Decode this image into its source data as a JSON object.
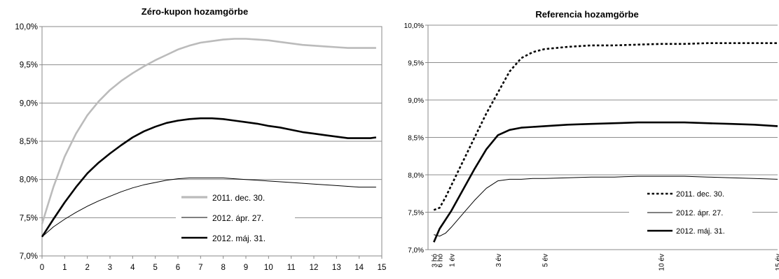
{
  "chart_data": [
    {
      "type": "line",
      "title": "Zéro-kupon hozamgörbe",
      "xlabel": "",
      "ylabel": "",
      "xlim": [
        0,
        15
      ],
      "ylim": [
        7.0,
        10.0
      ],
      "y_ticks": [
        "7,0%",
        "7,5%",
        "8,0%",
        "8,5%",
        "9,0%",
        "9,5%",
        "10,0%"
      ],
      "x_ticks": [
        "0",
        "1",
        "2",
        "3",
        "4",
        "5",
        "6",
        "7",
        "8",
        "9",
        "10",
        "11",
        "12",
        "13",
        "14",
        "15"
      ],
      "grid": "horizontal",
      "legend_position": "bottom-right",
      "series": [
        {
          "name": "2011. dec. 30.",
          "color": "#bbbbbb",
          "style": "solid-thick",
          "x": [
            0,
            0.25,
            0.5,
            1,
            1.5,
            2,
            2.5,
            3,
            3.5,
            4,
            4.5,
            5,
            5.5,
            6,
            6.5,
            7,
            7.5,
            8,
            8.5,
            9,
            9.5,
            10,
            10.5,
            11,
            11.5,
            12,
            12.5,
            13,
            13.5,
            14,
            14.5,
            14.75
          ],
          "y": [
            7.42,
            7.66,
            7.9,
            8.3,
            8.6,
            8.84,
            9.02,
            9.17,
            9.29,
            9.39,
            9.48,
            9.56,
            9.63,
            9.7,
            9.75,
            9.79,
            9.81,
            9.83,
            9.84,
            9.84,
            9.83,
            9.82,
            9.8,
            9.78,
            9.76,
            9.75,
            9.74,
            9.73,
            9.72,
            9.72,
            9.72,
            9.72
          ]
        },
        {
          "name": "2012. ápr. 27.",
          "color": "#000000",
          "style": "solid-thin",
          "x": [
            0,
            0.5,
            1,
            1.5,
            2,
            2.5,
            3,
            3.5,
            4,
            4.5,
            5,
            5.5,
            6,
            6.5,
            7,
            7.5,
            8,
            8.5,
            9,
            9.5,
            10,
            11,
            12,
            13,
            14,
            14.75
          ],
          "y": [
            7.25,
            7.38,
            7.48,
            7.57,
            7.65,
            7.72,
            7.78,
            7.84,
            7.89,
            7.93,
            7.96,
            7.99,
            8.01,
            8.02,
            8.02,
            8.02,
            8.02,
            8.01,
            8.0,
            7.99,
            7.98,
            7.96,
            7.94,
            7.92,
            7.9,
            7.9
          ]
        },
        {
          "name": "2012. máj. 31.",
          "color": "#000000",
          "style": "solid-thick",
          "x": [
            0,
            0.5,
            1,
            1.5,
            2,
            2.5,
            3,
            3.5,
            4,
            4.5,
            5,
            5.5,
            6,
            6.5,
            7,
            7.5,
            8,
            8.5,
            9,
            9.5,
            10,
            10.5,
            11,
            11.5,
            12,
            12.5,
            13,
            13.5,
            14,
            14.5,
            14.75
          ],
          "y": [
            7.25,
            7.48,
            7.7,
            7.9,
            8.08,
            8.22,
            8.34,
            8.45,
            8.55,
            8.63,
            8.69,
            8.74,
            8.77,
            8.79,
            8.8,
            8.8,
            8.79,
            8.77,
            8.75,
            8.73,
            8.7,
            8.68,
            8.65,
            8.62,
            8.6,
            8.58,
            8.56,
            8.54,
            8.54,
            8.54,
            8.55
          ]
        }
      ]
    },
    {
      "type": "line",
      "title": "Referencia hozamgörbe",
      "xlabel": "",
      "ylabel": "",
      "xlim": [
        0,
        15
      ],
      "ylim": [
        7.0,
        10.0
      ],
      "y_ticks": [
        "7,0%",
        "7,5%",
        "8,0%",
        "8,5%",
        "9,0%",
        "9,5%",
        "10,0%"
      ],
      "x_tick_labels": [
        {
          "x": 0.25,
          "label": "3 hó"
        },
        {
          "x": 0.5,
          "label": "6 hó"
        },
        {
          "x": 1,
          "label": "1 év"
        },
        {
          "x": 3,
          "label": "3 év"
        },
        {
          "x": 5,
          "label": "5 év"
        },
        {
          "x": 10,
          "label": "10 év"
        },
        {
          "x": 15,
          "label": "15 év"
        }
      ],
      "grid": "horizontal",
      "legend_position": "bottom-right",
      "series": [
        {
          "name": "2011. dec. 30.",
          "color": "#000000",
          "style": "dotted",
          "x": [
            0.25,
            0.5,
            0.75,
            1,
            1.5,
            2,
            2.5,
            3,
            3.5,
            4,
            4.5,
            5,
            6,
            7,
            8,
            9,
            10,
            11,
            12,
            13,
            14,
            15
          ],
          "y": [
            7.53,
            7.56,
            7.7,
            7.86,
            8.18,
            8.5,
            8.82,
            9.1,
            9.38,
            9.56,
            9.64,
            9.68,
            9.71,
            9.73,
            9.73,
            9.74,
            9.75,
            9.75,
            9.76,
            9.76,
            9.76,
            9.76
          ]
        },
        {
          "name": "2012. ápr. 27.",
          "color": "#000000",
          "style": "solid-thin",
          "x": [
            0.25,
            0.5,
            0.75,
            1,
            1.5,
            2,
            2.5,
            3,
            3.5,
            4,
            4.5,
            5,
            6,
            7,
            8,
            9,
            10,
            11,
            12,
            13,
            14,
            15
          ],
          "y": [
            7.2,
            7.18,
            7.22,
            7.3,
            7.48,
            7.66,
            7.82,
            7.92,
            7.94,
            7.94,
            7.95,
            7.95,
            7.96,
            7.97,
            7.97,
            7.98,
            7.98,
            7.98,
            7.97,
            7.96,
            7.95,
            7.94
          ]
        },
        {
          "name": "2012. máj. 31.",
          "color": "#000000",
          "style": "solid-thick",
          "x": [
            0.25,
            0.5,
            0.75,
            1,
            1.5,
            2,
            2.5,
            3,
            3.5,
            4,
            4.5,
            5,
            6,
            7,
            8,
            9,
            10,
            11,
            12,
            13,
            14,
            15
          ],
          "y": [
            7.1,
            7.28,
            7.4,
            7.52,
            7.8,
            8.08,
            8.34,
            8.53,
            8.6,
            8.63,
            8.64,
            8.65,
            8.67,
            8.68,
            8.69,
            8.7,
            8.7,
            8.7,
            8.69,
            8.68,
            8.67,
            8.65
          ]
        }
      ]
    }
  ]
}
